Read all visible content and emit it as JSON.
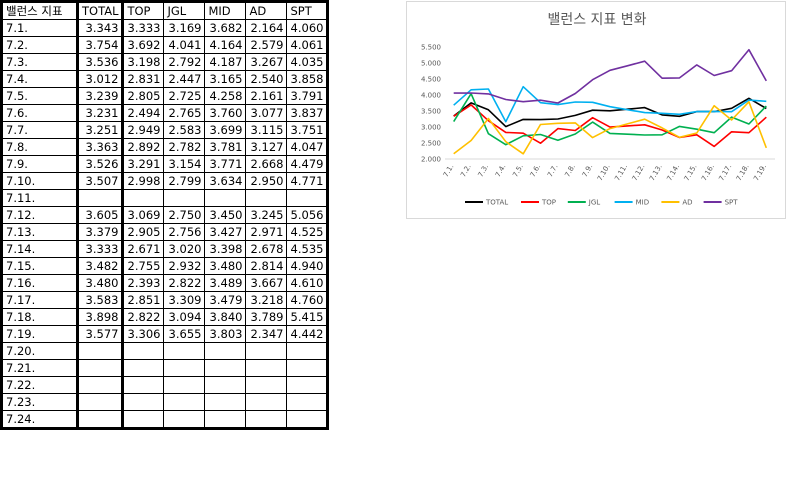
{
  "table": {
    "headers": [
      "밸런스 지표",
      "TOTAL",
      "TOP",
      "JGL",
      "MID",
      "AD",
      "SPT"
    ],
    "rows": [
      [
        "7.1.",
        "3.343",
        "3.333",
        "3.169",
        "3.682",
        "2.164",
        "4.060"
      ],
      [
        "7.2.",
        "3.754",
        "3.692",
        "4.041",
        "4.164",
        "2.579",
        "4.061"
      ],
      [
        "7.3.",
        "3.536",
        "3.198",
        "2.792",
        "4.187",
        "3.267",
        "4.035"
      ],
      [
        "7.4.",
        "3.012",
        "2.831",
        "2.447",
        "3.165",
        "2.540",
        "3.858"
      ],
      [
        "7.5.",
        "3.239",
        "2.805",
        "2.725",
        "4.258",
        "2.161",
        "3.791"
      ],
      [
        "7.6.",
        "3.231",
        "2.494",
        "2.765",
        "3.760",
        "3.077",
        "3.837"
      ],
      [
        "7.7.",
        "3.251",
        "2.949",
        "2.583",
        "3.699",
        "3.115",
        "3.751"
      ],
      [
        "7.8.",
        "3.363",
        "2.892",
        "2.782",
        "3.781",
        "3.127",
        "4.047"
      ],
      [
        "7.9.",
        "3.526",
        "3.291",
        "3.154",
        "3.771",
        "2.668",
        "4.479"
      ],
      [
        "7.10.",
        "3.507",
        "2.998",
        "2.799",
        "3.634",
        "2.950",
        "4.771"
      ],
      [
        "7.11.",
        "",
        "",
        "",
        "",
        "",
        ""
      ],
      [
        "7.12.",
        "3.605",
        "3.069",
        "2.750",
        "3.450",
        "3.245",
        "5.056"
      ],
      [
        "7.13.",
        "3.379",
        "2.905",
        "2.756",
        "3.427",
        "2.971",
        "4.525"
      ],
      [
        "7.14.",
        "3.333",
        "2.671",
        "3.020",
        "3.398",
        "2.678",
        "4.535"
      ],
      [
        "7.15.",
        "3.482",
        "2.755",
        "2.932",
        "3.480",
        "2.814",
        "4.940"
      ],
      [
        "7.16.",
        "3.480",
        "2.393",
        "2.822",
        "3.489",
        "3.667",
        "4.610"
      ],
      [
        "7.17.",
        "3.583",
        "2.851",
        "3.309",
        "3.479",
        "3.218",
        "4.760"
      ],
      [
        "7.18.",
        "3.898",
        "2.822",
        "3.094",
        "3.840",
        "3.789",
        "5.415"
      ],
      [
        "7.19.",
        "3.577",
        "3.306",
        "3.655",
        "3.803",
        "2.347",
        "4.442"
      ],
      [
        "7.20.",
        "",
        "",
        "",
        "",
        "",
        ""
      ],
      [
        "7.21.",
        "",
        "",
        "",
        "",
        "",
        ""
      ],
      [
        "7.22.",
        "",
        "",
        "",
        "",
        "",
        ""
      ],
      [
        "7.23.",
        "",
        "",
        "",
        "",
        "",
        ""
      ],
      [
        "7.24.",
        "",
        "",
        "",
        "",
        "",
        ""
      ]
    ]
  },
  "chart_data": {
    "type": "line",
    "title": "밸런스 지표 변화",
    "categories": [
      "7.1.",
      "7.2.",
      "7.3.",
      "7.4.",
      "7.5.",
      "7.6.",
      "7.7.",
      "7.8.",
      "7.9.",
      "7.10.",
      "7.11.",
      "7.12.",
      "7.13.",
      "7.14.",
      "7.15.",
      "7.16.",
      "7.17.",
      "7.18.",
      "7.19."
    ],
    "y_tick_labels": [
      "2.000",
      "2.500",
      "3.000",
      "3.500",
      "4.000",
      "4.500",
      "5.000",
      "5.500"
    ],
    "ylim": [
      2.0,
      5.5
    ],
    "grid": false,
    "legend_position": "bottom",
    "series": [
      {
        "name": "TOTAL",
        "color": "#000000",
        "values": [
          3.343,
          3.754,
          3.536,
          3.012,
          3.239,
          3.231,
          3.251,
          3.363,
          3.526,
          3.507,
          3.556,
          3.605,
          3.379,
          3.333,
          3.482,
          3.48,
          3.583,
          3.898,
          3.577
        ]
      },
      {
        "name": "TOP",
        "color": "#ff0000",
        "values": [
          3.333,
          3.692,
          3.198,
          2.831,
          2.805,
          2.494,
          2.949,
          2.892,
          3.291,
          2.998,
          3.034,
          3.069,
          2.905,
          2.671,
          2.755,
          2.393,
          2.851,
          2.822,
          3.306
        ]
      },
      {
        "name": "JGL",
        "color": "#00b050",
        "values": [
          3.169,
          4.041,
          2.792,
          2.447,
          2.725,
          2.765,
          2.583,
          2.782,
          3.154,
          2.799,
          2.775,
          2.75,
          2.756,
          3.02,
          2.932,
          2.822,
          3.309,
          3.094,
          3.655
        ]
      },
      {
        "name": "MID",
        "color": "#00b0f0",
        "values": [
          3.682,
          4.164,
          4.187,
          3.165,
          4.258,
          3.76,
          3.699,
          3.781,
          3.771,
          3.634,
          3.542,
          3.45,
          3.427,
          3.398,
          3.48,
          3.489,
          3.479,
          3.84,
          3.803
        ]
      },
      {
        "name": "AD",
        "color": "#ffc000",
        "values": [
          2.164,
          2.579,
          3.267,
          2.54,
          2.161,
          3.077,
          3.115,
          3.127,
          2.668,
          2.95,
          3.098,
          3.245,
          2.971,
          2.678,
          2.814,
          3.667,
          3.218,
          3.789,
          2.347
        ]
      },
      {
        "name": "SPT",
        "color": "#7030a0",
        "values": [
          4.06,
          4.061,
          4.035,
          3.858,
          3.791,
          3.837,
          3.751,
          4.047,
          4.479,
          4.771,
          4.914,
          5.056,
          4.525,
          4.535,
          4.94,
          4.61,
          4.76,
          5.415,
          4.442
        ]
      }
    ]
  }
}
